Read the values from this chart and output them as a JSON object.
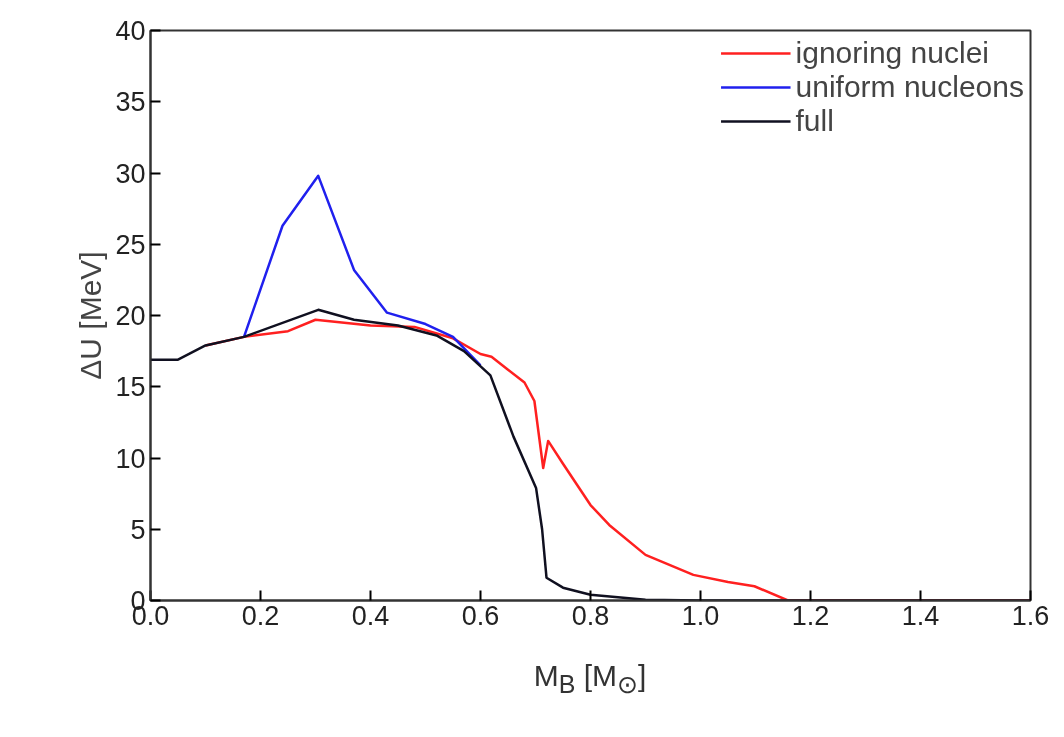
{
  "chart_data": {
    "type": "line",
    "xlabel": "M$_{B}$ [M$_{⊙}$]",
    "ylabel": "ΔU [MeV]",
    "xlim": [
      0,
      1.6
    ],
    "ylim": [
      0,
      40
    ],
    "xticks": [
      {
        "value": 0,
        "label": "0.0"
      },
      0.2,
      0.4,
      0.6,
      0.8,
      {
        "value": 1,
        "label": "1.0"
      },
      1.2,
      1.4,
      1.6
    ],
    "yticks": [
      0,
      5,
      10,
      15,
      20,
      25,
      30,
      35,
      40
    ],
    "grid": false,
    "legend": "top right",
    "marker": "none",
    "line_style": "solid",
    "series": [
      {
        "name": "ignoring nuclei",
        "color": "#ff2020",
        "x": [
          0.1,
          0.17,
          0.25,
          0.3,
          0.4,
          0.48,
          0.55,
          0.6,
          0.62,
          0.65,
          0.68,
          0.698,
          0.714,
          0.723,
          0.75,
          0.8,
          0.834,
          0.9,
          0.987,
          1.05,
          1.098,
          1.159,
          1.3,
          1.6
        ],
        "values": [
          17.9,
          18.5,
          18.9,
          19.7,
          19.3,
          19.2,
          18.4,
          17.3,
          17.1,
          16.2,
          15.3,
          14,
          9.3,
          11.2,
          9.6,
          6.7,
          5.3,
          3.2,
          1.8,
          1.3,
          1.0,
          0,
          0,
          0
        ]
      },
      {
        "name": "uniform nucleons",
        "color": "#2020ee",
        "x": [
          0.17,
          0.24,
          0.305,
          0.37,
          0.43,
          0.5,
          0.55,
          0.6
        ],
        "values": [
          18.5,
          26.3,
          29.8,
          23.2,
          20.2,
          19.4,
          18.5,
          16.5
        ]
      },
      {
        "name": "full",
        "color": "#101020",
        "x": [
          0,
          0.05,
          0.1,
          0.17,
          0.305,
          0.37,
          0.45,
          0.52,
          0.57,
          0.618,
          0.66,
          0.701,
          0.712,
          0.72,
          0.75,
          0.8,
          0.9,
          1.0,
          1.6
        ],
        "values": [
          16.9,
          16.9,
          17.9,
          18.5,
          20.4,
          19.7,
          19.3,
          18.6,
          17.5,
          15.8,
          11.5,
          7.9,
          5,
          1.6,
          0.9,
          0.4,
          0.05,
          0,
          0
        ]
      }
    ]
  }
}
